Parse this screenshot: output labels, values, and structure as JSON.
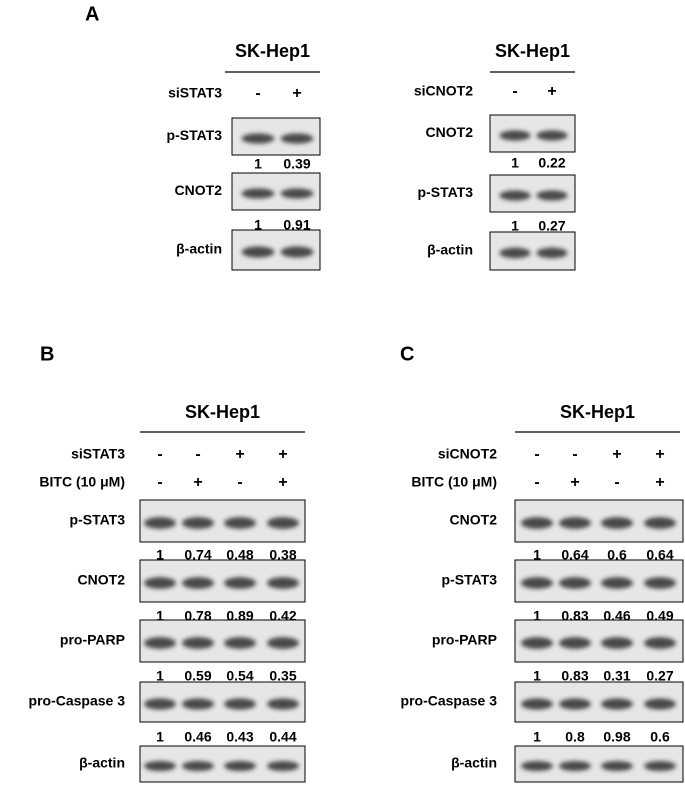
{
  "figure": {
    "panels": [
      {
        "label": "A",
        "blocks": [
          {
            "cell_line": "SK-Hep1",
            "treatments": [
              {
                "name": "siSTAT3",
                "lanes": [
                  "-",
                  "+"
                ]
              }
            ],
            "blots": [
              {
                "protein": "p-STAT3",
                "quant": [
                  1,
                  0.39
                ]
              },
              {
                "protein": "CNOT2",
                "quant": [
                  1,
                  0.91
                ]
              },
              {
                "protein": "β-actin"
              }
            ]
          },
          {
            "cell_line": "SK-Hep1",
            "treatments": [
              {
                "name": "siCNOT2",
                "lanes": [
                  "-",
                  "+"
                ]
              }
            ],
            "blots": [
              {
                "protein": "CNOT2",
                "quant": [
                  1,
                  0.22
                ]
              },
              {
                "protein": "p-STAT3",
                "quant": [
                  1,
                  0.27
                ]
              },
              {
                "protein": "β-actin"
              }
            ]
          }
        ]
      },
      {
        "label": "B",
        "blocks": [
          {
            "cell_line": "SK-Hep1",
            "treatments": [
              {
                "name": "siSTAT3",
                "lanes": [
                  "-",
                  "-",
                  "+",
                  "+"
                ]
              },
              {
                "name": "BITC (10 μM)",
                "lanes": [
                  "-",
                  "+",
                  "-",
                  "+"
                ]
              }
            ],
            "blots": [
              {
                "protein": "p-STAT3",
                "quant": [
                  1,
                  0.74,
                  0.48,
                  0.38
                ]
              },
              {
                "protein": "CNOT2",
                "quant": [
                  1,
                  0.78,
                  0.89,
                  0.42
                ]
              },
              {
                "protein": "pro-PARP",
                "quant": [
                  1,
                  0.59,
                  0.54,
                  0.35
                ]
              },
              {
                "protein": "pro-Caspase 3",
                "quant": [
                  1,
                  0.46,
                  0.43,
                  0.44
                ]
              },
              {
                "protein": "β-actin"
              }
            ]
          }
        ]
      },
      {
        "label": "C",
        "blocks": [
          {
            "cell_line": "SK-Hep1",
            "treatments": [
              {
                "name": "siCNOT2",
                "lanes": [
                  "-",
                  "-",
                  "+",
                  "+"
                ]
              },
              {
                "name": "BITC (10 μM)",
                "lanes": [
                  "-",
                  "+",
                  "-",
                  "+"
                ]
              }
            ],
            "blots": [
              {
                "protein": "CNOT2",
                "quant": [
                  1,
                  0.64,
                  0.6,
                  0.64
                ]
              },
              {
                "protein": "p-STAT3",
                "quant": [
                  1,
                  0.83,
                  0.46,
                  0.49
                ]
              },
              {
                "protein": "pro-PARP",
                "quant": [
                  1,
                  0.83,
                  0.31,
                  0.27
                ]
              },
              {
                "protein": "pro-Caspase 3",
                "quant": [
                  1,
                  0.8,
                  0.98,
                  0.6
                ]
              },
              {
                "protein": "β-actin"
              }
            ]
          }
        ]
      }
    ]
  }
}
